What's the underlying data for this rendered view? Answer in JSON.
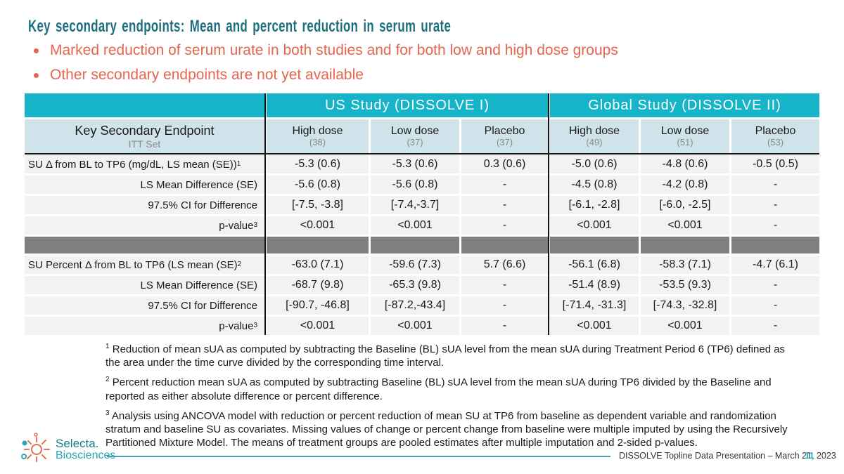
{
  "slide": {
    "title": "Key secondary endpoints: Mean and percent reduction in serum urate",
    "bullets": [
      "Marked reduction of serum urate in both studies and for both low and high dose groups",
      "Other secondary endpoints are not yet available"
    ]
  },
  "colors": {
    "header_teal": "#15b4c9",
    "subheader_blue": "#cfe4ea",
    "row_gray": "#f2f2f2",
    "divider_gray": "#7f7f7f",
    "title_teal": "#1d6f80",
    "bullet_orange": "#e4664e",
    "page_teal": "#29a9c4"
  },
  "table": {
    "study_headers": [
      "US Study (DISSOLVE I)",
      "Global Study (DISSOLVE II)"
    ],
    "left_header": {
      "title": "Key Secondary Endpoint",
      "subtitle": "ITT Set"
    },
    "columns": [
      {
        "label": "High dose",
        "n": "(38)"
      },
      {
        "label": "Low dose",
        "n": "(37)"
      },
      {
        "label": "Placebo",
        "n": "(37)"
      },
      {
        "label": "High dose",
        "n": "(49)"
      },
      {
        "label": "Low dose",
        "n": "(51)"
      },
      {
        "label": "Placebo",
        "n": "(53)"
      }
    ],
    "sections": [
      {
        "rows": [
          {
            "label": "SU Δ from BL to TP6 (mg/dL, LS mean (SE))",
            "sup": "1",
            "align": "left",
            "values": [
              "-5.3 (0.6)",
              "-5.3 (0.6)",
              "0.3 (0.6)",
              "-5.0 (0.6)",
              "-4.8 (0.6)",
              "-0.5 (0.5)"
            ]
          },
          {
            "label": "LS Mean Difference (SE)",
            "sup": "",
            "align": "right",
            "values": [
              "-5.6 (0.8)",
              "-5.6 (0.8)",
              "-",
              "-4.5 (0.8)",
              "-4.2 (0.8)",
              "-"
            ]
          },
          {
            "label": "97.5% CI for Difference",
            "sup": "",
            "align": "right",
            "values": [
              "[-7.5, -3.8]",
              "[-7.4,-3.7]",
              "-",
              "[-6.1, -2.8]",
              "[-6.0, -2.5]",
              "-"
            ]
          },
          {
            "label": "p-value",
            "sup": "3",
            "align": "right",
            "values": [
              "<0.001",
              "<0.001",
              "-",
              "<0.001",
              "<0.001",
              "-"
            ]
          }
        ]
      },
      {
        "rows": [
          {
            "label": "SU Percent Δ from BL to TP6 (LS mean (SE)",
            "sup": "2",
            "align": "left",
            "values": [
              "-63.0 (7.1)",
              "-59.6 (7.3)",
              "5.7 (6.6)",
              "-56.1 (6.8)",
              "-58.3 (7.1)",
              "-4.7 (6.1)"
            ]
          },
          {
            "label": "LS Mean Difference (SE)",
            "sup": "",
            "align": "right",
            "values": [
              "-68.7 (9.8)",
              "-65.3 (9.8)",
              "-",
              "-51.4 (8.9)",
              "-53.5 (9.3)",
              "-"
            ]
          },
          {
            "label": "97.5% CI for Difference",
            "sup": "",
            "align": "right",
            "values": [
              "[-90.7, -46.8]",
              "[-87.2,-43.4]",
              "-",
              "[-71.4, -31.3]",
              "[-74.3, -32.8]",
              "-"
            ]
          },
          {
            "label": "p-value",
            "sup": "3",
            "align": "right",
            "values": [
              "<0.001",
              "<0.001",
              "-",
              "<0.001",
              "<0.001",
              "-"
            ]
          }
        ]
      }
    ]
  },
  "footnotes": [
    {
      "sup": "1",
      "text": "Reduction of mean sUA as computed by subtracting the Baseline (BL) sUA level from the mean sUA during Treatment Period 6 (TP6) defined as the area under the time curve divided by the corresponding time interval."
    },
    {
      "sup": "2",
      "text": "Percent reduction mean sUA as computed by subtracting Baseline (BL) sUA level from the mean sUA during TP6 divided by the Baseline and reported as either absolute difference or percent difference."
    },
    {
      "sup": "3",
      "text": "Analysis using ANCOVA model with reduction or percent reduction of mean SU at TP6 from baseline as dependent variable and randomization stratum and baseline SU as covariates. Missing values of change or percent change from baseline were multiple imputed by using the Recursively Partitioned Mixture Model. The means of treatment groups are pooled estimates after multiple imputation and 2-sided p-values."
    }
  ],
  "logo": {
    "line1": "Selecta.",
    "line2": "Biosciences"
  },
  "footer": {
    "caption": "DISSOLVE Topline Data Presentation – March 21, 2023",
    "page": "11"
  }
}
